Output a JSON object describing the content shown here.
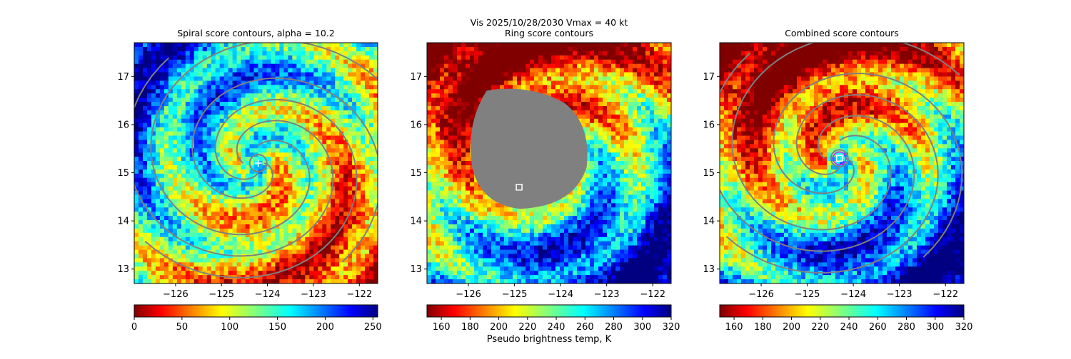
{
  "suptitle": {
    "line1": "Vis  2025/10/28/2030    Vmax = 40 kt"
  },
  "chart_data": [
    {
      "type": "heatmap",
      "title": "Spiral score contours, alpha = 10.2",
      "xlim": [
        -126.9,
        -121.6
      ],
      "ylim": [
        12.7,
        17.7
      ],
      "x_ticks": [
        -126,
        -125,
        -124,
        -123,
        -122
      ],
      "x_tick_labels": [
        "−126",
        "−125",
        "−124",
        "−123",
        "−122"
      ],
      "y_ticks": [
        13,
        14,
        15,
        16,
        17
      ],
      "y_tick_labels": [
        "13",
        "14",
        "15",
        "16",
        "17"
      ],
      "colorbar": {
        "colormap": "jet_r",
        "range": [
          0,
          255
        ],
        "ticks": [
          0,
          50,
          100,
          150,
          200,
          250
        ],
        "tick_labels": [
          "0",
          "50",
          "100",
          "150",
          "200",
          "250"
        ],
        "label": ""
      },
      "center_marker": {
        "lon": -124.2,
        "lat": 15.2,
        "marker": "plus",
        "color": "#ffffff"
      }
    },
    {
      "type": "heatmap",
      "title": "Ring score contours",
      "xlim": [
        -126.9,
        -121.6
      ],
      "ylim": [
        12.7,
        17.7
      ],
      "x_ticks": [
        -126,
        -125,
        -124,
        -123,
        -122
      ],
      "x_tick_labels": [
        "−126",
        "−125",
        "−124",
        "−123",
        "−122"
      ],
      "y_ticks": [
        13,
        14,
        15,
        16,
        17
      ],
      "y_tick_labels": [
        "13",
        "14",
        "15",
        "16",
        "17"
      ],
      "colorbar": {
        "colormap": "jet_r",
        "range": [
          150,
          320
        ],
        "ticks": [
          160,
          180,
          200,
          220,
          240,
          260,
          280,
          300,
          320
        ],
        "tick_labels": [
          "160",
          "180",
          "200",
          "220",
          "240",
          "260",
          "280",
          "300",
          "320"
        ],
        "label": "Pseudo brightness temp, K"
      },
      "masked_region": {
        "color": "#808080",
        "center_lon": -124.8,
        "center_lat": 15.7
      },
      "center_marker": {
        "lon": -124.9,
        "lat": 14.7,
        "marker": "square",
        "color": "#ffffff"
      }
    },
    {
      "type": "heatmap",
      "title": "Combined score contours",
      "xlim": [
        -126.9,
        -121.6
      ],
      "ylim": [
        12.7,
        17.7
      ],
      "x_ticks": [
        -126,
        -125,
        -124,
        -123,
        -122
      ],
      "x_tick_labels": [
        "−126",
        "−125",
        "−124",
        "−123",
        "−122"
      ],
      "y_ticks": [
        13,
        14,
        15,
        16,
        17
      ],
      "y_tick_labels": [
        "13",
        "14",
        "15",
        "16",
        "17"
      ],
      "colorbar": {
        "colormap": "jet_r",
        "range": [
          150,
          320
        ],
        "ticks": [
          160,
          180,
          200,
          220,
          240,
          260,
          280,
          300,
          320
        ],
        "tick_labels": [
          "160",
          "180",
          "200",
          "220",
          "240",
          "260",
          "280",
          "300",
          "320"
        ],
        "label": ""
      },
      "center_marker": {
        "lon": -124.3,
        "lat": 15.3,
        "marker": "square",
        "color": "#ffffff"
      },
      "ring_marker": {
        "lon": -124.3,
        "lat": 15.3,
        "color": "#ff00ff"
      }
    }
  ]
}
